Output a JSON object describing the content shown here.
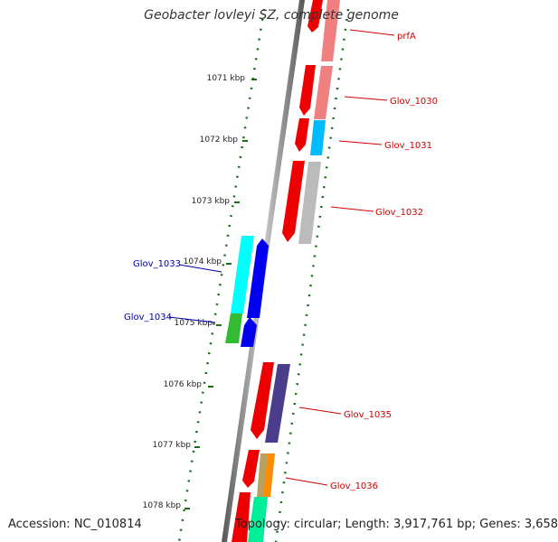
{
  "title": "Geobacter lovleyi SZ, complete genome",
  "footer": {
    "accession": "Accession: NC_010814",
    "topology": "Topology: circular; Length: 3,917,761 bp; Genes: 3,658"
  },
  "ticks": [
    "1071 kbp",
    "1072 kbp",
    "1073 kbp",
    "1074 kbp",
    "1075 kbp",
    "1076 kbp",
    "1077 kbp",
    "1078 kbp"
  ],
  "forward_genes": [
    "prfA",
    "Glov_1030",
    "Glov_1031",
    "Glov_1032",
    "Glov_1035",
    "Glov_1036"
  ],
  "reverse_genes": [
    "Glov_1033",
    "Glov_1034"
  ],
  "colors": {
    "backbone": "#888888",
    "tick_mark": "#1a6b1a",
    "forward_label": "#cc0000",
    "reverse_label": "#0000aa",
    "cds_red": "#ee0000",
    "cds_blue": "#0000ee",
    "cog_pink": "#f08080",
    "cog_cyan": "#00bbff",
    "cog_gray": "#bbbbbb",
    "cog_purple": "#4b3c8c",
    "cog_tan": "#b8a060",
    "cog_orange": "#ff8c00",
    "cog_teal": "#00ee99",
    "cog_aqua": "#00ffff",
    "cog_green": "#33bb33"
  }
}
